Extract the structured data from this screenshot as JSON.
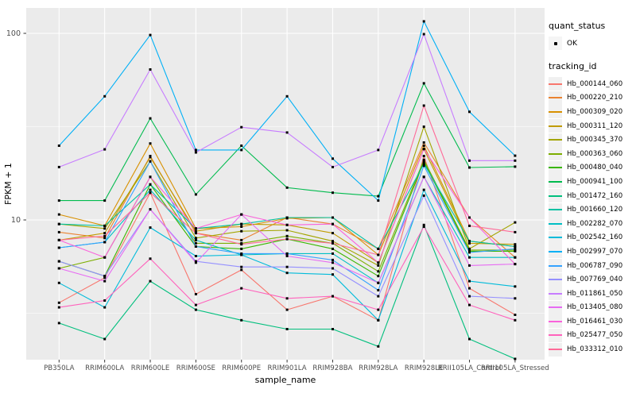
{
  "figure": {
    "background": "#FFFFFF"
  },
  "chart_data": {
    "type": "line",
    "title": "",
    "xlabel": "sample_name",
    "ylabel": "FPKM + 1",
    "y_scale": "log10",
    "y_axis_tick_labels": [
      "100",
      "10"
    ],
    "y_tick_values": [
      100,
      10
    ],
    "y_minor_values": [
      31.623,
      3.162
    ],
    "ylim": [
      1.78,
      137
    ],
    "grid": true,
    "legend_position": "right",
    "panel_bg": "#EBEBEB",
    "grid_color": "#FFFFFF",
    "tick_color": "#333333",
    "tick_label_color": "#4D4D4D",
    "point_color": "#000000",
    "point_shape": "small-black-square",
    "categories": [
      "PB350LA",
      "RRIM600LA",
      "RRIM600LE",
      "RRIM600SE",
      "RRIM600PE",
      "RRIM901LA",
      "RRIM928BA",
      "RRIM928LA",
      "RRIM928LE",
      "RRII105LA_Control",
      "RRII105LA_Stressed"
    ],
    "legend": {
      "quant_title": "quant_status",
      "quant_value": "OK",
      "tracking_title": "tracking_id"
    },
    "series": [
      {
        "name": "Hb_000144_060",
        "color": "#F8766D",
        "values": [
          3.6,
          4.9,
          14,
          4,
          5.4,
          3.3,
          3.9,
          2.9,
          22,
          4.3,
          3.1
        ]
      },
      {
        "name": "Hb_000220_210",
        "color": "#EA8331",
        "values": [
          8.6,
          8,
          22,
          8.5,
          7.8,
          10.3,
          9.5,
          7,
          26,
          10.3,
          6.3
        ]
      },
      {
        "name": "Hb_000309_020",
        "color": "#D89000",
        "values": [
          10.7,
          9.3,
          25.7,
          9,
          9.2,
          10.2,
          10.3,
          6.5,
          25,
          7.7,
          7.2
        ]
      },
      {
        "name": "Hb_000311_120",
        "color": "#C09B00",
        "values": [
          7.8,
          8.5,
          21.7,
          8.7,
          9.5,
          9.4,
          8.5,
          5.9,
          24,
          7.5,
          7.4
        ]
      },
      {
        "name": "Hb_000345_370",
        "color": "#A3A500",
        "values": [
          9.5,
          9,
          20.6,
          8,
          8.7,
          8.8,
          7.7,
          5.7,
          31.6,
          7,
          9.7
        ]
      },
      {
        "name": "Hb_000363_060",
        "color": "#7CAE00",
        "values": [
          5.5,
          6.3,
          17,
          7.5,
          7.5,
          8.2,
          7.5,
          5.3,
          21,
          6.9,
          6.9
        ]
      },
      {
        "name": "Hb_000480_040",
        "color": "#39B600",
        "values": [
          6,
          5,
          15.5,
          7.2,
          7,
          7.9,
          7,
          5,
          20.5,
          6.8,
          6.8
        ]
      },
      {
        "name": "Hb_000941_100",
        "color": "#00BB4E",
        "values": [
          12.7,
          12.7,
          35,
          13.7,
          25,
          14.9,
          14,
          13.4,
          54,
          19.1,
          19.3
        ]
      },
      {
        "name": "Hb_001472_160",
        "color": "#00BF7D",
        "values": [
          2.8,
          2.3,
          4.7,
          3.3,
          2.9,
          2.6,
          2.6,
          2.1,
          9.4,
          2.3,
          1.8
        ]
      },
      {
        "name": "Hb_001660_120",
        "color": "#00C1A3",
        "values": [
          9.5,
          9.3,
          15.5,
          9,
          9.5,
          10.3,
          10.3,
          7,
          20,
          7.7,
          7.2
        ]
      },
      {
        "name": "Hb_002282_070",
        "color": "#00BFC4",
        "values": [
          7.1,
          7.6,
          14.5,
          7.8,
          6.5,
          6.6,
          6.6,
          4.6,
          17,
          6.3,
          6.3
        ]
      },
      {
        "name": "Hb_002542_160",
        "color": "#00BBDA",
        "values": [
          4.6,
          3.4,
          9.1,
          6.4,
          6.5,
          5.2,
          5.1,
          2.9,
          14.5,
          4.7,
          4.4
        ]
      },
      {
        "name": "Hb_002997_070",
        "color": "#00B0F6",
        "values": [
          25,
          46,
          98,
          23.7,
          23.7,
          46,
          21.3,
          12.7,
          116,
          38,
          22.1
        ]
      },
      {
        "name": "Hb_006787_090",
        "color": "#35A2FF",
        "values": [
          7.1,
          7.6,
          20.6,
          7.2,
          6.6,
          6.6,
          6.1,
          4.2,
          19.5,
          6.7,
          7
        ]
      },
      {
        "name": "Hb_007769_040",
        "color": "#9590FF",
        "values": [
          6,
          5,
          11.4,
          6,
          5.6,
          5.6,
          5.5,
          3.9,
          13.5,
          3.9,
          3.8
        ]
      },
      {
        "name": "Hb_011861_050",
        "color": "#C77CFF",
        "values": [
          19.2,
          23.9,
          64,
          23,
          31.4,
          29.4,
          19.2,
          23.7,
          99,
          20.8,
          20.8
        ]
      },
      {
        "name": "Hb_013405_080",
        "color": "#E76BF3",
        "values": [
          5.5,
          4.7,
          11.4,
          5.9,
          10.7,
          6.4,
          5.9,
          4.6,
          17,
          5.7,
          5.8
        ]
      },
      {
        "name": "Hb_016461_030",
        "color": "#FA62DB",
        "values": [
          7.8,
          6.3,
          17,
          9,
          10.7,
          9.4,
          9.5,
          5.9,
          24,
          10.3,
          5.8
        ]
      },
      {
        "name": "Hb_025477_050",
        "color": "#FF62BC",
        "values": [
          3.4,
          3.7,
          6.2,
          3.5,
          4.3,
          3.8,
          3.9,
          3.3,
          9.2,
          3.5,
          2.9
        ]
      },
      {
        "name": "Hb_033312_010",
        "color": "#FF6A98",
        "values": [
          7.8,
          8.2,
          14,
          8.5,
          7.4,
          7.9,
          7.5,
          6.5,
          41,
          9.3,
          8.6
        ]
      }
    ]
  }
}
